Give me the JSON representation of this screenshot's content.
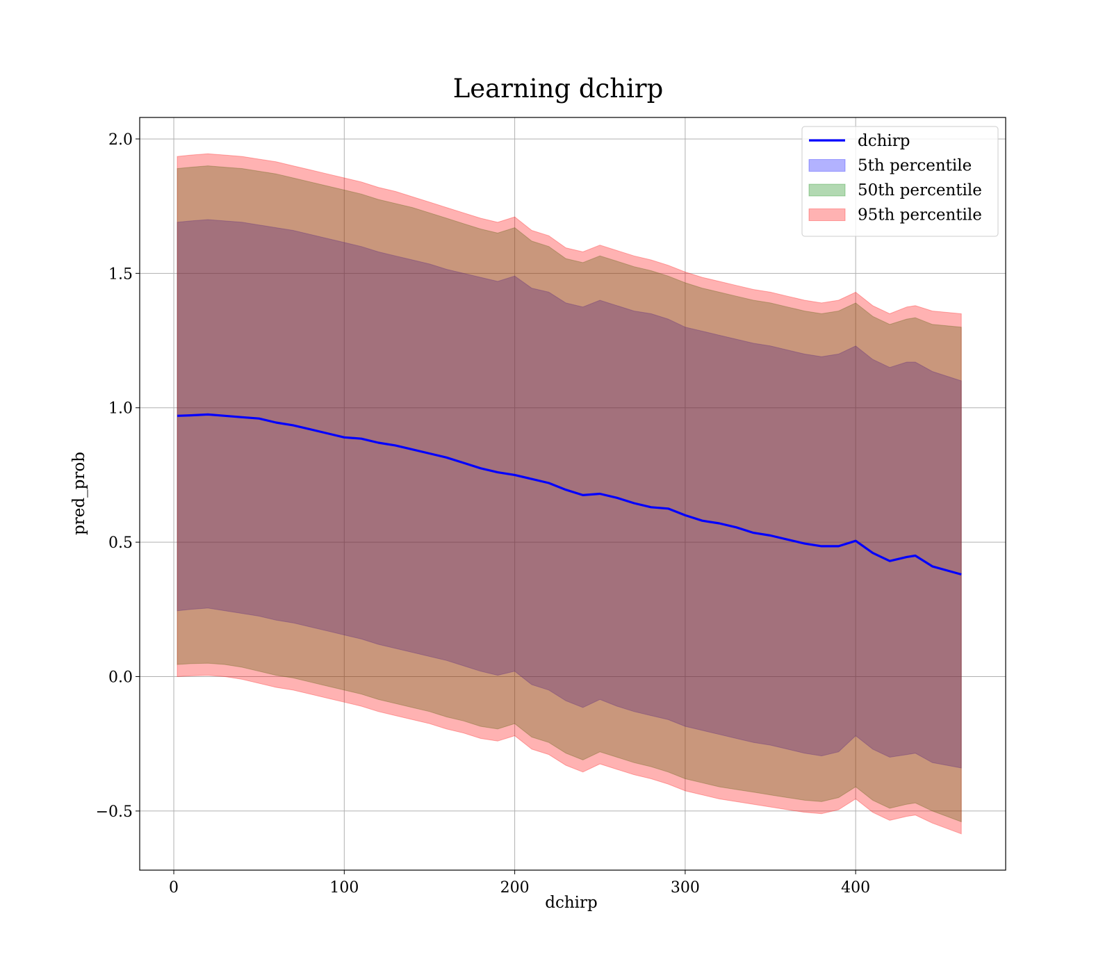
{
  "chart_data": {
    "type": "area",
    "title": "Learning dchirp",
    "xlabel": "dchirp",
    "ylabel": "pred_prob",
    "xlim": [
      -20,
      488
    ],
    "ylim": [
      -0.72,
      2.08
    ],
    "x_ticks": [
      0,
      100,
      200,
      300,
      400
    ],
    "y_ticks": [
      -0.5,
      0.0,
      0.5,
      1.0,
      1.5,
      2.0
    ],
    "x_tick_labels": [
      "0",
      "100",
      "200",
      "300",
      "400"
    ],
    "y_tick_labels": [
      "−0.5",
      "0.0",
      "0.5",
      "1.0",
      "1.5",
      "2.0"
    ],
    "grid": true,
    "legend": {
      "position": "top-right",
      "entries": [
        {
          "label": "dchirp",
          "kind": "line",
          "color": "#0000ff"
        },
        {
          "label": "5th percentile",
          "kind": "patch",
          "color": "#0000ff"
        },
        {
          "label": "50th percentile",
          "kind": "patch",
          "color": "#008000"
        },
        {
          "label": "95th percentile",
          "kind": "patch",
          "color": "#ff0000"
        }
      ]
    },
    "x": [
      2,
      10,
      20,
      30,
      40,
      50,
      60,
      70,
      80,
      90,
      100,
      110,
      120,
      130,
      140,
      150,
      160,
      170,
      180,
      190,
      200,
      210,
      220,
      230,
      240,
      250,
      260,
      270,
      280,
      290,
      300,
      310,
      320,
      330,
      340,
      350,
      360,
      370,
      380,
      390,
      400,
      410,
      420,
      430,
      435,
      445,
      462
    ],
    "series": [
      {
        "name": "dchirp",
        "kind": "line",
        "color": "#0000ff",
        "values": [
          0.97,
          0.972,
          0.975,
          0.97,
          0.965,
          0.96,
          0.945,
          0.935,
          0.92,
          0.905,
          0.89,
          0.885,
          0.87,
          0.86,
          0.845,
          0.83,
          0.815,
          0.795,
          0.775,
          0.76,
          0.75,
          0.735,
          0.72,
          0.695,
          0.675,
          0.68,
          0.665,
          0.645,
          0.63,
          0.625,
          0.6,
          0.58,
          0.57,
          0.555,
          0.535,
          0.525,
          0.51,
          0.495,
          0.485,
          0.485,
          0.505,
          0.46,
          0.43,
          0.445,
          0.45,
          0.41,
          0.38
        ]
      },
      {
        "name": "5th percentile",
        "kind": "band",
        "color": "#0000ff",
        "opacity": 0.3,
        "upper": [
          1.69,
          1.695,
          1.7,
          1.695,
          1.69,
          1.68,
          1.67,
          1.66,
          1.645,
          1.63,
          1.615,
          1.6,
          1.58,
          1.565,
          1.55,
          1.535,
          1.515,
          1.5,
          1.485,
          1.47,
          1.49,
          1.445,
          1.43,
          1.39,
          1.375,
          1.4,
          1.38,
          1.36,
          1.35,
          1.33,
          1.3,
          1.285,
          1.27,
          1.255,
          1.24,
          1.23,
          1.215,
          1.2,
          1.19,
          1.2,
          1.23,
          1.18,
          1.15,
          1.17,
          1.17,
          1.135,
          1.1
        ],
        "lower": [
          0.245,
          0.25,
          0.255,
          0.245,
          0.235,
          0.225,
          0.21,
          0.2,
          0.185,
          0.17,
          0.155,
          0.14,
          0.12,
          0.105,
          0.09,
          0.075,
          0.06,
          0.04,
          0.02,
          0.005,
          0.02,
          -0.03,
          -0.05,
          -0.09,
          -0.115,
          -0.085,
          -0.11,
          -0.13,
          -0.145,
          -0.16,
          -0.185,
          -0.2,
          -0.215,
          -0.23,
          -0.245,
          -0.255,
          -0.27,
          -0.285,
          -0.295,
          -0.28,
          -0.22,
          -0.27,
          -0.3,
          -0.29,
          -0.285,
          -0.32,
          -0.34
        ]
      },
      {
        "name": "50th percentile",
        "kind": "band",
        "color": "#008000",
        "opacity": 0.3,
        "upper": [
          1.89,
          1.895,
          1.9,
          1.895,
          1.89,
          1.88,
          1.87,
          1.855,
          1.84,
          1.825,
          1.81,
          1.795,
          1.775,
          1.76,
          1.745,
          1.725,
          1.705,
          1.685,
          1.665,
          1.65,
          1.67,
          1.62,
          1.6,
          1.555,
          1.54,
          1.565,
          1.545,
          1.525,
          1.51,
          1.49,
          1.465,
          1.445,
          1.43,
          1.415,
          1.4,
          1.39,
          1.375,
          1.36,
          1.35,
          1.36,
          1.39,
          1.34,
          1.31,
          1.33,
          1.335,
          1.31,
          1.3
        ],
        "lower": [
          0.045,
          0.048,
          0.05,
          0.045,
          0.035,
          0.02,
          0.005,
          -0.005,
          -0.02,
          -0.035,
          -0.05,
          -0.065,
          -0.085,
          -0.1,
          -0.115,
          -0.13,
          -0.15,
          -0.165,
          -0.185,
          -0.195,
          -0.175,
          -0.225,
          -0.245,
          -0.285,
          -0.31,
          -0.28,
          -0.3,
          -0.32,
          -0.335,
          -0.355,
          -0.38,
          -0.395,
          -0.41,
          -0.42,
          -0.43,
          -0.44,
          -0.45,
          -0.46,
          -0.465,
          -0.45,
          -0.41,
          -0.46,
          -0.49,
          -0.475,
          -0.47,
          -0.5,
          -0.54
        ]
      },
      {
        "name": "95th percentile",
        "kind": "band",
        "color": "#ff0000",
        "opacity": 0.3,
        "upper": [
          1.935,
          1.94,
          1.945,
          1.94,
          1.935,
          1.925,
          1.915,
          1.9,
          1.885,
          1.87,
          1.855,
          1.84,
          1.82,
          1.805,
          1.785,
          1.765,
          1.745,
          1.725,
          1.705,
          1.69,
          1.71,
          1.66,
          1.64,
          1.595,
          1.58,
          1.605,
          1.585,
          1.565,
          1.55,
          1.53,
          1.505,
          1.485,
          1.47,
          1.455,
          1.44,
          1.43,
          1.415,
          1.4,
          1.39,
          1.4,
          1.43,
          1.38,
          1.35,
          1.375,
          1.38,
          1.36,
          1.35
        ],
        "lower": [
          0.0,
          0.003,
          0.005,
          0.0,
          -0.01,
          -0.025,
          -0.04,
          -0.05,
          -0.065,
          -0.08,
          -0.095,
          -0.11,
          -0.13,
          -0.145,
          -0.16,
          -0.175,
          -0.195,
          -0.21,
          -0.23,
          -0.24,
          -0.22,
          -0.27,
          -0.29,
          -0.33,
          -0.355,
          -0.325,
          -0.345,
          -0.365,
          -0.38,
          -0.4,
          -0.425,
          -0.44,
          -0.455,
          -0.465,
          -0.475,
          -0.485,
          -0.495,
          -0.505,
          -0.51,
          -0.495,
          -0.455,
          -0.505,
          -0.535,
          -0.52,
          -0.515,
          -0.545,
          -0.585
        ]
      }
    ]
  }
}
